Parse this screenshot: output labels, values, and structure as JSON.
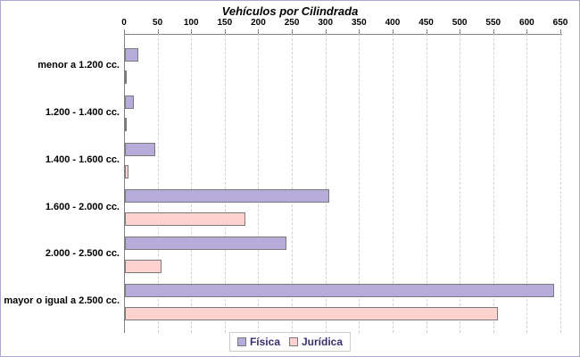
{
  "title": "Vehículos por Cilindrada",
  "chart_data": {
    "type": "bar",
    "orientation": "horizontal",
    "title": "Vehículos por Cilindrada",
    "categories": [
      "menor a 1.200 cc.",
      "1.200 - 1.400 cc.",
      "1.400 - 1.600 cc.",
      "1.600 - 2.000 cc.",
      "2.000 - 2.500 cc.",
      "mayor o igual a 2.500 cc."
    ],
    "series": [
      {
        "name": "Física",
        "color": "#b7abd9",
        "values": [
          20,
          13,
          45,
          305,
          240,
          640
        ]
      },
      {
        "name": "Jurídica",
        "color": "#fed2ce",
        "values": [
          2,
          3,
          5,
          180,
          55,
          555
        ]
      }
    ],
    "xlim": [
      0,
      650
    ],
    "x_ticks": [
      0,
      50,
      100,
      150,
      200,
      250,
      300,
      350,
      400,
      450,
      500,
      550,
      600,
      650
    ],
    "grid": "vertical-dashed",
    "legend_position": "bottom"
  },
  "colors": {
    "fisica_fill": "#b7abd9",
    "juridica_fill": "#fed2ce",
    "bar_border": "#7a7a7a",
    "axis": "#808080",
    "grid": "#d0d0d0",
    "legend_text": "#3b2f71",
    "frame": "#a9a9d0"
  }
}
